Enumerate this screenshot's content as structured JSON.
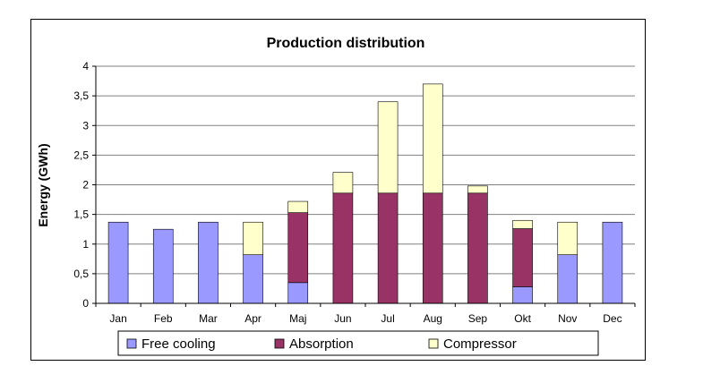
{
  "chart_data": {
    "type": "bar",
    "stacked": true,
    "title": "Production distribution",
    "xlabel": "",
    "ylabel": "Energy (GWh)",
    "ylim": [
      0,
      4
    ],
    "yticks": [
      "0",
      "0,5",
      "1",
      "1,5",
      "2",
      "2,5",
      "3",
      "3,5",
      "4"
    ],
    "grid": true,
    "legend_position": "bottom",
    "categories": [
      "Jan",
      "Feb",
      "Mar",
      "Apr",
      "Maj",
      "Jun",
      "Jul",
      "Aug",
      "Sep",
      "Okt",
      "Nov",
      "Dec"
    ],
    "series": [
      {
        "name": "Free cooling",
        "color": "#9999ff",
        "values": [
          1.37,
          1.25,
          1.37,
          0.82,
          0.35,
          0,
          0,
          0,
          0,
          0.28,
          0.82,
          1.37
        ]
      },
      {
        "name": "Absorption",
        "color": "#993366",
        "values": [
          0,
          0,
          0,
          0,
          1.18,
          1.86,
          1.86,
          1.86,
          1.86,
          0.98,
          0,
          0
        ]
      },
      {
        "name": "Compressor",
        "color": "#ffffcc",
        "values": [
          0,
          0,
          0,
          0.55,
          0.19,
          0.35,
          1.54,
          1.84,
          0.12,
          0.14,
          0.55,
          0
        ]
      }
    ]
  }
}
